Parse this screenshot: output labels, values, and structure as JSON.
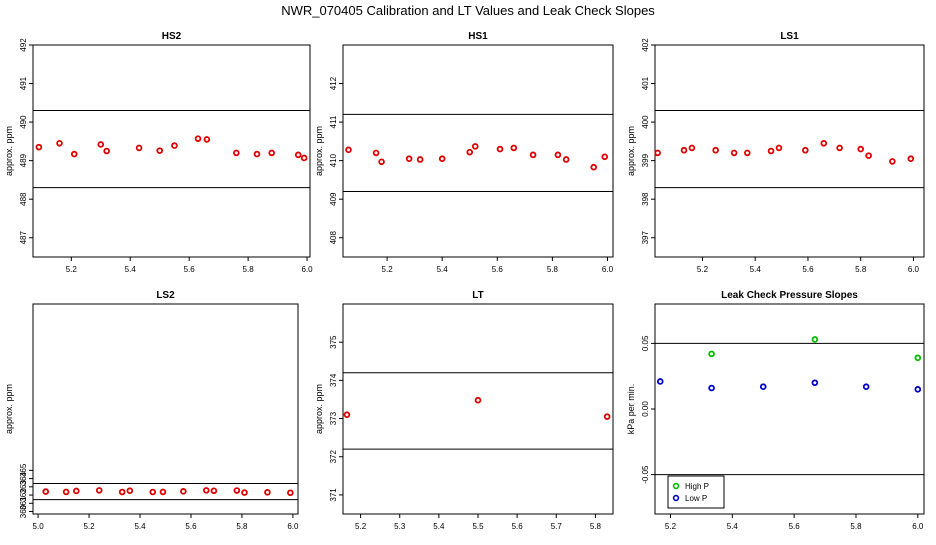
{
  "figure": {
    "title": "NWR_070405  Calibration and LT Values and Leak Check Slopes"
  },
  "chart_data": [
    {
      "type": "scatter",
      "title": "HS2",
      "ylabel": "approx. ppm",
      "xlim": [
        5.07,
        6.01
      ],
      "ylim": [
        486.5,
        492.0
      ],
      "xticks": [
        "5.2",
        "5.4",
        "5.6",
        "5.8",
        "6.0"
      ],
      "xtick_values": [
        5.2,
        5.4,
        5.6,
        5.8,
        6.0
      ],
      "yticks": [
        "487",
        "488",
        "489",
        "490",
        "491",
        "492"
      ],
      "ytick_values": [
        487,
        488,
        489,
        490,
        491,
        492
      ],
      "hlines": [
        490.3,
        488.3
      ],
      "series": [
        {
          "color": "#dd0000",
          "marker": "circle",
          "x": [
            5.09,
            5.16,
            5.21,
            5.3,
            5.32,
            5.43,
            5.5,
            5.55,
            5.63,
            5.66,
            5.76,
            5.83,
            5.88,
            5.97,
            5.99
          ],
          "y": [
            489.35,
            489.45,
            489.17,
            489.42,
            489.25,
            489.33,
            489.26,
            489.39,
            489.57,
            489.55,
            489.2,
            489.17,
            489.2,
            489.15,
            489.07
          ]
        }
      ]
    },
    {
      "type": "scatter",
      "title": "HS1",
      "ylabel": "approx. ppm",
      "xlim": [
        5.04,
        6.02
      ],
      "ylim": [
        407.5,
        413.0
      ],
      "xticks": [
        "5.2",
        "5.4",
        "5.6",
        "5.8",
        "6.0"
      ],
      "xtick_values": [
        5.2,
        5.4,
        5.6,
        5.8,
        6.0
      ],
      "yticks": [
        "408",
        "409",
        "410",
        "411",
        "412"
      ],
      "ytick_values": [
        408,
        409,
        410,
        411,
        412
      ],
      "hlines": [
        411.2,
        409.2
      ],
      "series": [
        {
          "color": "#dd0000",
          "marker": "circle",
          "x": [
            5.06,
            5.16,
            5.18,
            5.28,
            5.32,
            5.4,
            5.5,
            5.52,
            5.61,
            5.66,
            5.73,
            5.82,
            5.85,
            5.95,
            5.99
          ],
          "y": [
            410.28,
            410.2,
            409.97,
            410.05,
            410.03,
            410.05,
            410.22,
            410.37,
            410.3,
            410.33,
            410.15,
            410.15,
            410.03,
            409.83,
            410.1
          ]
        }
      ]
    },
    {
      "type": "scatter",
      "title": "LS1",
      "ylabel": "approx. ppm",
      "xlim": [
        5.02,
        6.04
      ],
      "ylim": [
        396.5,
        402.0
      ],
      "xticks": [
        "5.2",
        "5.4",
        "5.6",
        "5.8",
        "6.0"
      ],
      "xtick_values": [
        5.2,
        5.4,
        5.6,
        5.8,
        6.0
      ],
      "yticks": [
        "397",
        "398",
        "399",
        "400",
        "401",
        "402"
      ],
      "ytick_values": [
        397,
        398,
        399,
        400,
        401,
        402
      ],
      "hlines": [
        400.3,
        398.3
      ],
      "series": [
        {
          "color": "#dd0000",
          "marker": "circle",
          "x": [
            5.03,
            5.13,
            5.16,
            5.25,
            5.32,
            5.37,
            5.46,
            5.49,
            5.59,
            5.66,
            5.72,
            5.8,
            5.83,
            5.92,
            5.99
          ],
          "y": [
            399.2,
            399.27,
            399.33,
            399.27,
            399.2,
            399.2,
            399.25,
            399.33,
            399.27,
            399.45,
            399.33,
            399.3,
            399.13,
            398.98,
            399.05
          ]
        }
      ]
    },
    {
      "type": "scatter",
      "title": "LS2",
      "ylabel": "approx. ppm",
      "xlim": [
        4.98,
        6.02
      ],
      "ylim": [
        359.7,
        385.2
      ],
      "xticks": [
        "5.0",
        "5.2",
        "5.4",
        "5.6",
        "5.8",
        "6.0"
      ],
      "xtick_values": [
        5.0,
        5.2,
        5.4,
        5.6,
        5.8,
        6.0
      ],
      "yticks": [
        "360",
        "361",
        "362",
        "363",
        "364",
        "365"
      ],
      "ytick_values": [
        360,
        361,
        362,
        363,
        364,
        365
      ],
      "hlines": [
        363.4,
        361.45
      ],
      "series": [
        {
          "color": "#dd0000",
          "marker": "circle",
          "x": [
            5.03,
            5.11,
            5.15,
            5.24,
            5.33,
            5.36,
            5.45,
            5.49,
            5.57,
            5.66,
            5.69,
            5.78,
            5.81,
            5.9,
            5.99
          ],
          "y": [
            362.42,
            362.38,
            362.5,
            362.57,
            362.37,
            362.53,
            362.37,
            362.38,
            362.45,
            362.57,
            362.52,
            362.55,
            362.3,
            362.33,
            362.28
          ]
        }
      ]
    },
    {
      "type": "scatter",
      "title": "LT",
      "ylabel": "approx. ppm",
      "xlim": [
        5.155,
        5.845
      ],
      "ylim": [
        370.5,
        376.0
      ],
      "xticks": [
        "5.2",
        "5.3",
        "5.4",
        "5.5",
        "5.6",
        "5.7",
        "5.8"
      ],
      "xtick_values": [
        5.2,
        5.3,
        5.4,
        5.5,
        5.6,
        5.7,
        5.8
      ],
      "yticks": [
        "371",
        "372",
        "373",
        "374",
        "375"
      ],
      "ytick_values": [
        371,
        372,
        373,
        374,
        375
      ],
      "hlines": [
        374.2,
        372.2
      ],
      "series": [
        {
          "color": "#dd0000",
          "marker": "circle",
          "x": [
            5.165,
            5.5,
            5.83
          ],
          "y": [
            373.1,
            373.48,
            373.05
          ]
        }
      ]
    },
    {
      "type": "scatter",
      "title": "Leak Check Pressure Slopes",
      "ylabel": "kPa per min.",
      "xlim": [
        5.15,
        6.02
      ],
      "ylim": [
        -0.08,
        0.08
      ],
      "xticks": [
        "5.2",
        "5.4",
        "5.6",
        "5.8",
        "6.0"
      ],
      "xtick_values": [
        5.2,
        5.4,
        5.6,
        5.8,
        6.0
      ],
      "yticks": [
        "-0.05",
        "0.00",
        "0.05"
      ],
      "ytick_values": [
        -0.05,
        0.0,
        0.05
      ],
      "hlines": [
        0.05,
        -0.05
      ],
      "legend": "bottom-left",
      "series": [
        {
          "name": "High P",
          "color": "#00bb00",
          "marker": "circle",
          "x": [
            5.333,
            5.667,
            6.0
          ],
          "y": [
            0.042,
            0.053,
            0.039
          ]
        },
        {
          "name": "Low P",
          "color": "#0000cc",
          "marker": "circle",
          "x": [
            5.167,
            5.333,
            5.5,
            5.667,
            5.833,
            6.0
          ],
          "y": [
            0.021,
            0.016,
            0.017,
            0.02,
            0.017,
            0.015
          ]
        }
      ]
    }
  ]
}
